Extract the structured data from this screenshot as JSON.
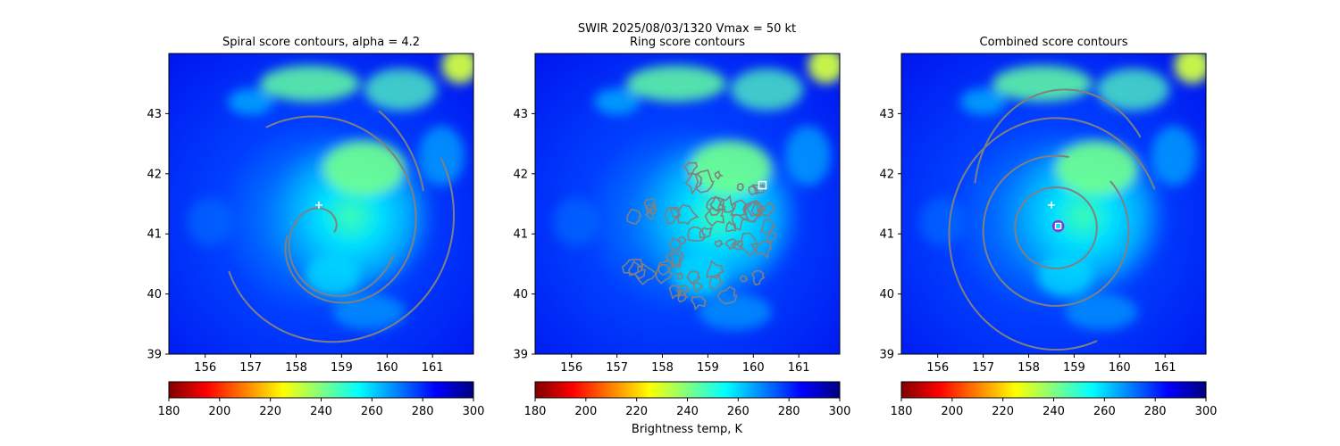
{
  "figure": {
    "suptitle_line1": "SWIR  2025/08/03/1320    Vmax = 50 kt",
    "colorbar_label": "Brightness temp, K"
  },
  "colormap": {
    "name": "jet_r",
    "stops": [
      "#800000",
      "#ff0000",
      "#ff8000",
      "#ffff00",
      "#80ff80",
      "#00ffff",
      "#0080ff",
      "#0000ff",
      "#000080"
    ]
  },
  "contour_color": "#808080",
  "marker_colors": {
    "cross": "#ffffff",
    "box": "#ffffff",
    "circle": "#9b2dcf"
  },
  "chart_data": [
    {
      "type": "heatmap",
      "title": "Spiral score contours, alpha =  4.2",
      "xlim": [
        155.2,
        161.9
      ],
      "ylim": [
        39.0,
        44.0
      ],
      "xticks": [
        156,
        157,
        158,
        159,
        160,
        161
      ],
      "yticks": [
        39,
        40,
        41,
        42,
        43
      ],
      "colorbar": {
        "range": [
          180,
          300
        ],
        "ticks": [
          180,
          200,
          220,
          240,
          260,
          280,
          300
        ]
      },
      "markers": [
        {
          "symbol": "cross",
          "lon": 158.5,
          "lat": 41.48
        }
      ]
    },
    {
      "type": "heatmap",
      "title": "Ring score contours",
      "xlim": [
        155.2,
        161.9
      ],
      "ylim": [
        39.0,
        44.0
      ],
      "xticks": [
        156,
        157,
        158,
        159,
        160,
        161
      ],
      "yticks": [
        39,
        40,
        41,
        42,
        43
      ],
      "colorbar": {
        "range": [
          180,
          300
        ],
        "ticks": [
          180,
          200,
          220,
          240,
          260,
          280,
          300
        ]
      },
      "markers": [
        {
          "symbol": "square",
          "lon": 160.2,
          "lat": 41.81
        }
      ]
    },
    {
      "type": "heatmap",
      "title": "Combined score contours",
      "xlim": [
        155.2,
        161.9
      ],
      "ylim": [
        39.0,
        44.0
      ],
      "xticks": [
        156,
        157,
        158,
        159,
        160,
        161
      ],
      "yticks": [
        39,
        40,
        41,
        42,
        43
      ],
      "colorbar": {
        "range": [
          180,
          300
        ],
        "ticks": [
          180,
          200,
          220,
          240,
          260,
          280,
          300
        ]
      },
      "markers": [
        {
          "symbol": "cross",
          "lon": 158.5,
          "lat": 41.48
        },
        {
          "symbol": "circle",
          "lon": 158.65,
          "lat": 41.13
        }
      ]
    }
  ]
}
